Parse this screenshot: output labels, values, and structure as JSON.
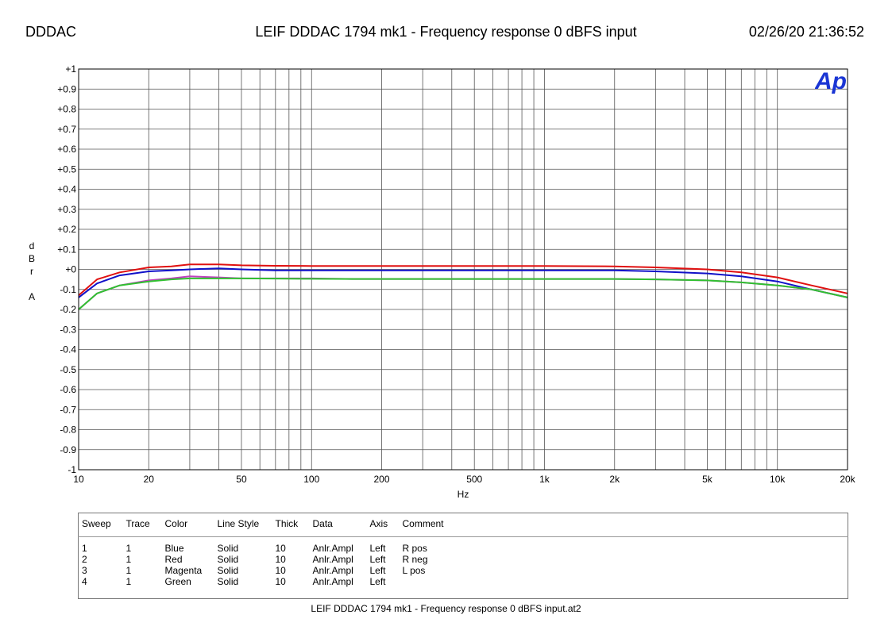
{
  "header": {
    "left": "DDDAC",
    "title": "LEIF DDDAC 1794 mk1 - Frequency response 0 dBFS input",
    "timestamp": "02/26/20 21:36:52"
  },
  "logo": {
    "text": "Ap",
    "color": "#1a35d4"
  },
  "chart_data": {
    "type": "line",
    "xlabel": "Hz",
    "ylabel": [
      "d",
      "B",
      "r",
      "",
      "A"
    ],
    "x_scale": "log",
    "xlim": [
      10,
      20000
    ],
    "ylim": [
      -1,
      1
    ],
    "grid": true,
    "x_ticks": [
      10,
      20,
      50,
      100,
      200,
      500,
      1000,
      2000,
      5000,
      10000,
      20000
    ],
    "x_tick_labels": [
      "10",
      "20",
      "50",
      "100",
      "200",
      "500",
      "1k",
      "2k",
      "5k",
      "10k",
      "20k"
    ],
    "y_ticks": [
      1,
      0.9,
      0.8,
      0.7,
      0.6,
      0.5,
      0.4,
      0.3,
      0.2,
      0.1,
      0,
      -0.1,
      -0.2,
      -0.3,
      -0.4,
      -0.5,
      -0.6,
      -0.7,
      -0.8,
      -0.9,
      -1
    ],
    "y_tick_labels": [
      "+1",
      "+0.9",
      "+0.8",
      "+0.7",
      "+0.6",
      "+0.5",
      "+0.4",
      "+0.3",
      "+0.2",
      "+0.1",
      "+0",
      "-0.1",
      "-0.2",
      "-0.3",
      "-0.4",
      "-0.5",
      "-0.6",
      "-0.7",
      "-0.8",
      "-0.9",
      "-1"
    ],
    "series": [
      {
        "color": "#1010c8",
        "x": [
          10,
          12,
          15,
          20,
          25,
          30,
          40,
          50,
          70,
          100,
          150,
          200,
          300,
          500,
          700,
          1000,
          2000,
          3000,
          5000,
          7000,
          10000,
          14000,
          20000
        ],
        "y": [
          -0.14,
          -0.07,
          -0.03,
          -0.01,
          -0.005,
          0.0,
          0.005,
          0.0,
          -0.005,
          -0.005,
          -0.005,
          -0.005,
          -0.005,
          -0.005,
          -0.005,
          -0.005,
          -0.005,
          -0.01,
          -0.02,
          -0.035,
          -0.06,
          -0.1,
          -0.14
        ]
      },
      {
        "color": "#e01010",
        "x": [
          10,
          12,
          15,
          20,
          25,
          30,
          40,
          50,
          70,
          100,
          150,
          200,
          300,
          500,
          700,
          1000,
          2000,
          3000,
          5000,
          7000,
          10000,
          14000,
          20000
        ],
        "y": [
          -0.13,
          -0.05,
          -0.015,
          0.01,
          0.015,
          0.025,
          0.025,
          0.02,
          0.018,
          0.017,
          0.017,
          0.017,
          0.017,
          0.017,
          0.017,
          0.017,
          0.015,
          0.01,
          0.0,
          -0.015,
          -0.04,
          -0.08,
          -0.12
        ]
      },
      {
        "color": "#c040c0",
        "x": [
          10,
          12,
          15,
          20,
          25,
          30,
          40,
          50,
          70,
          100,
          150,
          200,
          300,
          500,
          700,
          1000,
          2000,
          3000,
          5000,
          7000,
          10000,
          14000,
          20000
        ],
        "y": [
          -0.2,
          -0.12,
          -0.08,
          -0.055,
          -0.045,
          -0.035,
          -0.04,
          -0.045,
          -0.045,
          -0.045,
          -0.048,
          -0.048,
          -0.048,
          -0.048,
          -0.048,
          -0.048,
          -0.048,
          -0.05,
          -0.055,
          -0.065,
          -0.08,
          -0.1,
          -0.14
        ]
      },
      {
        "color": "#30c030",
        "x": [
          10,
          12,
          15,
          20,
          25,
          30,
          40,
          50,
          70,
          100,
          150,
          200,
          300,
          500,
          700,
          1000,
          2000,
          3000,
          5000,
          7000,
          10000,
          14000,
          20000
        ],
        "y": [
          -0.2,
          -0.12,
          -0.08,
          -0.06,
          -0.05,
          -0.045,
          -0.045,
          -0.045,
          -0.046,
          -0.047,
          -0.048,
          -0.048,
          -0.048,
          -0.048,
          -0.048,
          -0.048,
          -0.048,
          -0.05,
          -0.055,
          -0.065,
          -0.08,
          -0.1,
          -0.14
        ]
      }
    ]
  },
  "legend_table": {
    "headers": [
      "Sweep",
      "Trace",
      "Color",
      "Line Style",
      "Thick",
      "Data",
      "Axis",
      "Comment"
    ],
    "rows": [
      [
        "1",
        "1",
        "Blue",
        "Solid",
        "10",
        "Anlr.Ampl",
        "Left",
        "R pos"
      ],
      [
        "2",
        "1",
        "Red",
        "Solid",
        "10",
        "Anlr.Ampl",
        "Left",
        "R neg"
      ],
      [
        "3",
        "1",
        "Magenta",
        "Solid",
        "10",
        "Anlr.Ampl",
        "Left",
        "L pos"
      ],
      [
        "4",
        "1",
        "Green",
        "Solid",
        "10",
        "Anlr.Ampl",
        "Left",
        ""
      ]
    ]
  },
  "footer": "LEIF DDDAC 1794 mk1 - Frequency response 0 dBFS input.at2"
}
